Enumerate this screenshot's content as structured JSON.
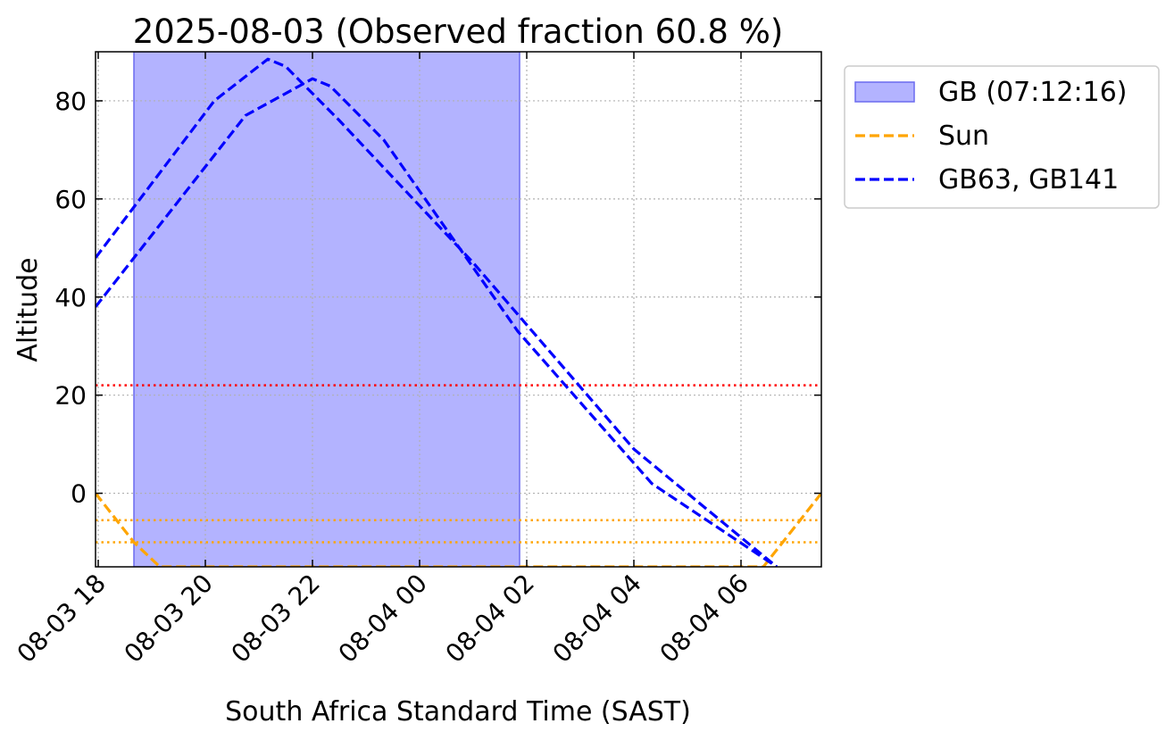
{
  "chart_data": {
    "type": "line",
    "title": "2025-08-03 (Observed fraction 60.8 %)",
    "xlabel": "South Africa Standard Time (SAST)",
    "ylabel": "Altitude",
    "xlim": [
      "2025-08-03 17:57",
      "2025-08-04 07:30"
    ],
    "ylim": [
      -15,
      90
    ],
    "yticks": [
      0,
      20,
      40,
      60,
      80
    ],
    "xticks": [
      "08-03 18",
      "08-03 20",
      "08-03 22",
      "08-04 00",
      "08-04 02",
      "08-04 04",
      "08-04 06"
    ],
    "xtick_values": [
      "2025-08-03 18:00",
      "2025-08-03 20:00",
      "2025-08-03 22:00",
      "2025-08-04 00:00",
      "2025-08-04 02:00",
      "2025-08-04 04:00",
      "2025-08-04 06:00"
    ],
    "grid": true,
    "legend_position": "outside upper right",
    "observed_window": {
      "label": "GB (07:12:16)",
      "start": "2025-08-03 18:40",
      "end": "2025-08-04 01:52",
      "color": "#b3b3ff",
      "edge_color": "#6b6bef"
    },
    "series": [
      {
        "name": "Sun",
        "color": "#ffa500",
        "style": "dashed",
        "x": [
          "2025-08-03 17:57",
          "2025-08-03 18:40",
          "2025-08-03 19:09",
          "2025-08-04 06:25",
          "2025-08-04 07:30"
        ],
        "y": [
          0,
          -10,
          -15,
          -15,
          0
        ]
      },
      {
        "name": "GB63",
        "color": "#0000ff",
        "style": "dashed",
        "x": [
          "2025-08-03 17:57",
          "2025-08-03 20:10",
          "2025-08-03 21:10",
          "2025-08-03 21:30",
          "2025-08-03 22:30",
          "2025-08-04 01:00",
          "2025-08-04 04:00",
          "2025-08-04 06:40"
        ],
        "y": [
          48,
          80,
          88.5,
          87,
          76,
          47,
          9,
          -15
        ]
      },
      {
        "name": "GB141",
        "color": "#0000ff",
        "style": "dashed",
        "x": [
          "2025-08-03 17:57",
          "2025-08-03 20:45",
          "2025-08-03 22:00",
          "2025-08-03 22:20",
          "2025-08-03 23:20",
          "2025-08-04 01:50",
          "2025-08-04 04:20",
          "2025-08-04 06:40"
        ],
        "y": [
          38,
          77,
          84.5,
          83,
          72,
          33,
          2,
          -15
        ]
      }
    ],
    "reference_lines": [
      {
        "y": 22,
        "color": "#ff0000",
        "style": "dotted"
      },
      {
        "y": -5.5,
        "color": "#ffa500",
        "style": "dotted"
      },
      {
        "y": -10,
        "color": "#ffa500",
        "style": "dotted"
      }
    ],
    "legend": [
      {
        "label": "GB (07:12:16)",
        "kind": "patch",
        "color": "#b3b3ff"
      },
      {
        "label": "Sun",
        "kind": "line",
        "color": "#ffa500"
      },
      {
        "label": "GB63, GB141",
        "kind": "line",
        "color": "#0000ff"
      }
    ]
  }
}
